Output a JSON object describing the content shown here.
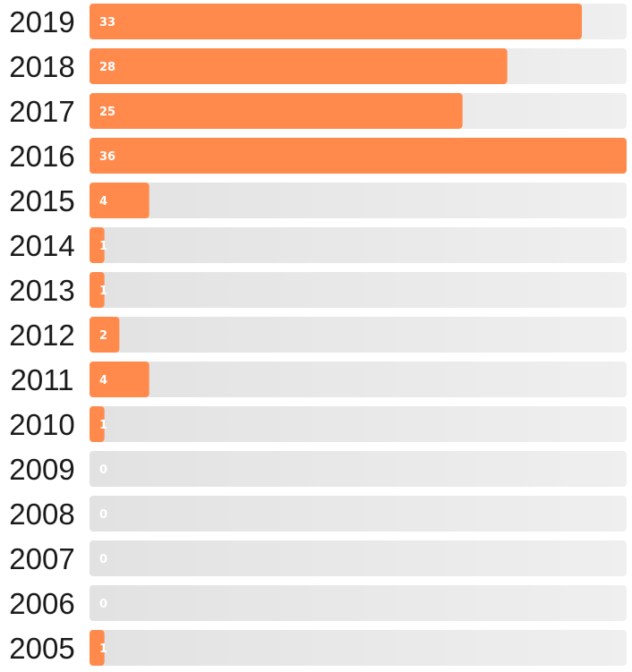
{
  "chart_data": {
    "type": "bar",
    "orientation": "horizontal",
    "title": "",
    "xlabel": "",
    "ylabel": "",
    "categories": [
      "2019",
      "2018",
      "2017",
      "2016",
      "2015",
      "2014",
      "2013",
      "2012",
      "2011",
      "2010",
      "2009",
      "2008",
      "2007",
      "2006",
      "2005"
    ],
    "values": [
      33,
      28,
      25,
      36,
      4,
      1,
      1,
      2,
      4,
      1,
      0,
      0,
      0,
      0,
      1
    ],
    "value_labels": [
      "33",
      "28",
      "25",
      "36",
      "4",
      "1",
      "1",
      "2",
      "4",
      "1",
      "0",
      "0",
      "0",
      "0",
      "1"
    ],
    "xlim": [
      0,
      36
    ],
    "grid": false,
    "legend": "none",
    "colors": {
      "bar": "#ff8a4c",
      "track": "#e8e8e8"
    }
  }
}
